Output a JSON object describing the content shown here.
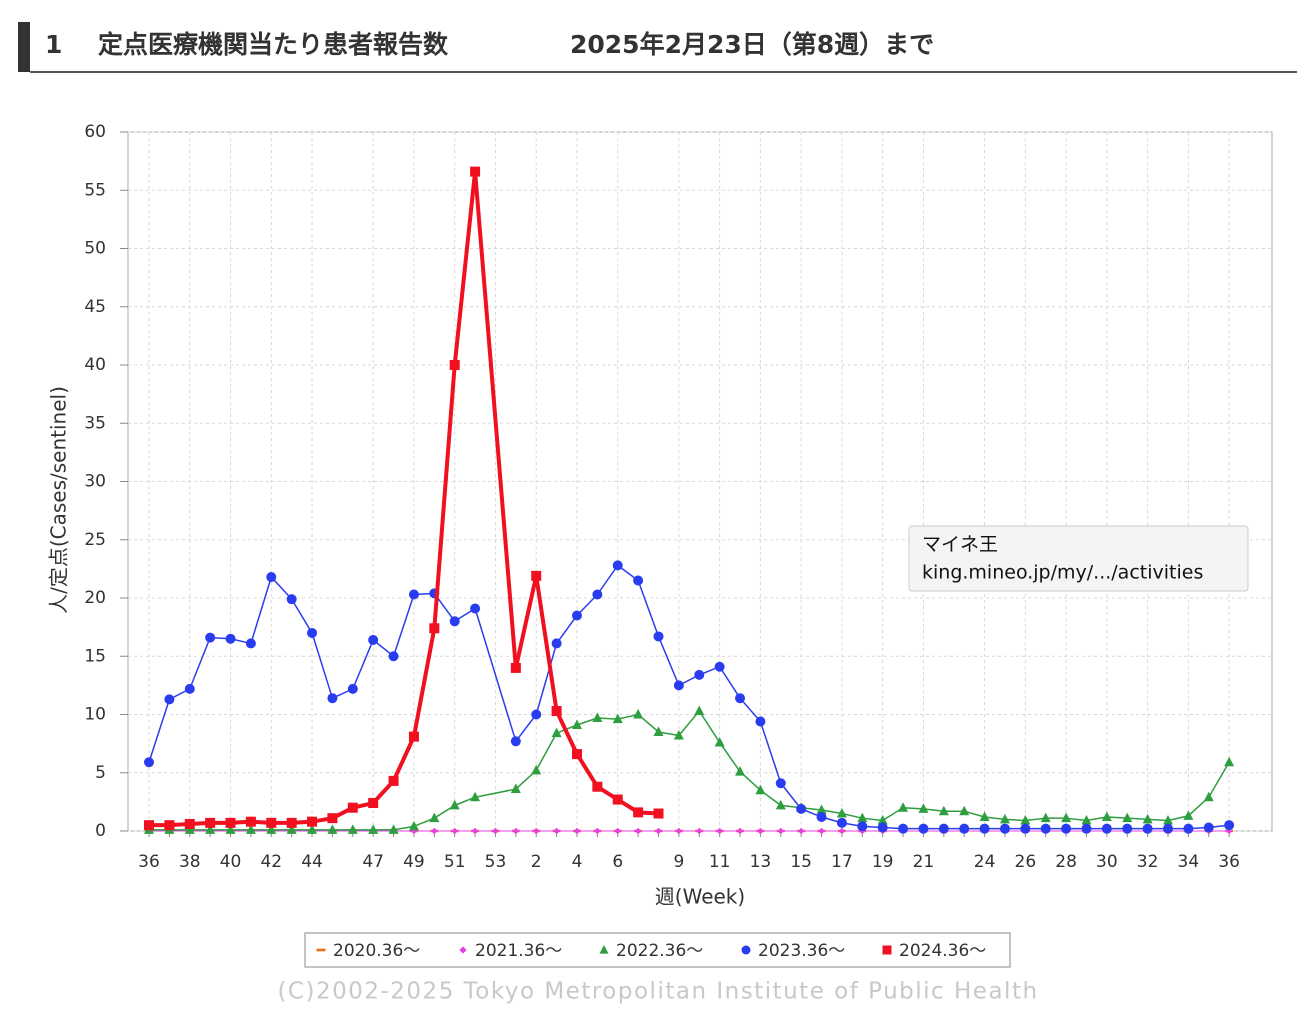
{
  "chart_data": {
    "type": "line",
    "heading_number": "1",
    "title": "定点医療機関当たり患者報告数",
    "subtitle": "2025年2月23日（第8週）まで",
    "xlabel": "週(Week)",
    "ylabel": "人/定点(Cases/sentinel)",
    "footer": "(C)2002-2025 Tokyo Metropolitan Institute of Public Health",
    "tooltip": [
      "マイネ王",
      "king.mineo.jp/my/.../activities"
    ],
    "ylim": [
      0,
      60
    ],
    "yticks": [
      0,
      5,
      10,
      15,
      20,
      25,
      30,
      35,
      40,
      45,
      50,
      55,
      60
    ],
    "grid": true,
    "legend": "bottom",
    "categories": [
      "36",
      null,
      "38",
      null,
      "40",
      null,
      "42",
      null,
      "44",
      null,
      null,
      "47",
      null,
      "49",
      null,
      "51",
      null,
      "53",
      null,
      "2",
      null,
      "4",
      null,
      "6",
      null,
      null,
      "9",
      null,
      "11",
      null,
      "13",
      null,
      "15",
      null,
      "17",
      null,
      "19",
      null,
      "21",
      null,
      null,
      "24",
      null,
      "26",
      null,
      "28",
      null,
      "30",
      null,
      "32",
      null,
      "34",
      null,
      "36"
    ],
    "series": [
      {
        "name": "2020.36～",
        "color": "#f07020",
        "marker": "dash",
        "width": 1,
        "values": [
          0,
          0,
          0,
          0,
          0,
          0,
          0,
          0,
          0,
          0,
          0,
          0,
          0,
          0,
          0,
          0,
          0,
          0,
          0,
          0,
          0,
          0,
          0,
          0,
          0,
          0,
          0,
          0,
          0,
          0,
          0,
          0,
          0,
          0,
          0,
          0,
          0,
          0,
          0,
          0,
          0,
          0,
          0,
          0,
          0,
          0,
          0,
          0,
          0,
          0,
          0,
          0,
          0,
          0
        ]
      },
      {
        "name": "2021.36～",
        "color": "#e83ee8",
        "marker": "diamond",
        "width": 1,
        "values": [
          0,
          0,
          0,
          0,
          0,
          0,
          0,
          0,
          0,
          0,
          0,
          0,
          0,
          0,
          0,
          0,
          0,
          0,
          0,
          0,
          0,
          0,
          0,
          0,
          0,
          0,
          0,
          0,
          0,
          0,
          0,
          0,
          0,
          0,
          0,
          0,
          0,
          0,
          0,
          0,
          0,
          0,
          0,
          0,
          0,
          0,
          0,
          0,
          0,
          0,
          0,
          0,
          0,
          0
        ]
      },
      {
        "name": "2022.36～",
        "color": "#2e9e3e",
        "marker": "triangle",
        "width": 1.5,
        "values": [
          0.1,
          0.1,
          0.1,
          0.1,
          0.1,
          0.1,
          0.1,
          0.1,
          0.1,
          0.1,
          0.1,
          0.1,
          0.1,
          0.4,
          1.1,
          2.2,
          2.9,
          null,
          3.6,
          5.2,
          8.4,
          9.1,
          9.7,
          9.6,
          10.0,
          8.5,
          8.2,
          10.3,
          7.6,
          5.1,
          3.5,
          2.2,
          2.0,
          1.8,
          1.5,
          1.1,
          0.9,
          2.0,
          1.9,
          1.7,
          1.7,
          1.2,
          1.0,
          0.9,
          1.1,
          1.1,
          0.9,
          1.2,
          1.1,
          1.0,
          0.9,
          1.3,
          2.9,
          5.9
        ]
      },
      {
        "name": "2023.36～",
        "color": "#2a3cf0",
        "marker": "circle",
        "width": 1.5,
        "values": [
          5.9,
          11.3,
          12.2,
          16.6,
          16.5,
          16.1,
          21.8,
          19.9,
          17.0,
          11.4,
          12.2,
          16.4,
          15.0,
          20.3,
          20.4,
          18.0,
          19.1,
          null,
          7.7,
          10.0,
          16.1,
          18.5,
          20.3,
          22.8,
          21.5,
          16.7,
          12.5,
          13.4,
          14.1,
          11.4,
          9.4,
          4.1,
          1.9,
          1.2,
          0.7,
          0.4,
          0.3,
          0.2,
          0.2,
          0.2,
          0.2,
          0.2,
          0.2,
          0.2,
          0.2,
          0.2,
          0.2,
          0.2,
          0.2,
          0.2,
          0.2,
          0.2,
          0.3,
          0.5
        ]
      },
      {
        "name": "2024.36～",
        "color": "#f01020",
        "marker": "square",
        "width": 4,
        "values": [
          0.5,
          0.5,
          0.6,
          0.7,
          0.7,
          0.8,
          0.7,
          0.7,
          0.8,
          1.1,
          2.0,
          2.4,
          4.3,
          8.1,
          17.4,
          40.0,
          56.6,
          null,
          14.0,
          21.9,
          10.3,
          6.6,
          3.8,
          2.7,
          1.6,
          1.5,
          null,
          null,
          null,
          null,
          null,
          null,
          null,
          null,
          null,
          null,
          null,
          null,
          null,
          null,
          null,
          null,
          null,
          null,
          null,
          null,
          null,
          null,
          null,
          null,
          null,
          null,
          null,
          null
        ]
      }
    ]
  }
}
